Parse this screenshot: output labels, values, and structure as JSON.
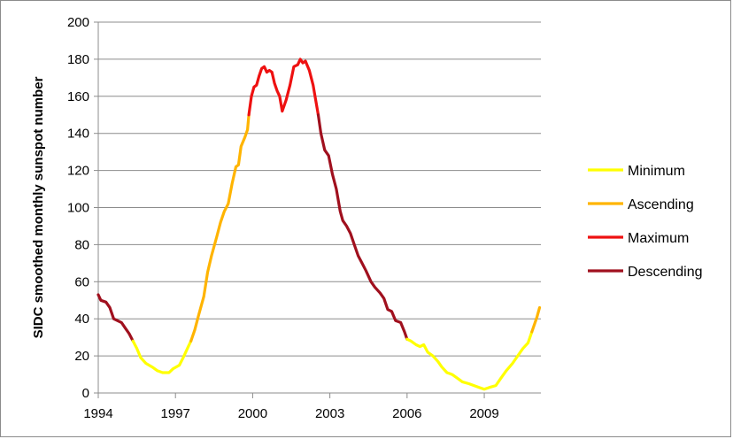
{
  "chart_data": {
    "type": "line",
    "title": "",
    "xlabel": "",
    "ylabel": "SIDC smoothed monthly sunspot number",
    "xlim": [
      1994,
      2011.2
    ],
    "ylim": [
      0,
      200
    ],
    "x_ticks": [
      1994,
      1997,
      2000,
      2003,
      2006,
      2009
    ],
    "y_ticks": [
      0,
      20,
      40,
      60,
      80,
      100,
      120,
      140,
      160,
      180,
      200
    ],
    "x_tick_labels": [
      "1994",
      "1997",
      "2000",
      "2003",
      "2006",
      "2009"
    ],
    "y_tick_labels": [
      "0",
      "20",
      "40",
      "60",
      "80",
      "100",
      "120",
      "140",
      "160",
      "180",
      "200"
    ],
    "grid": "horizontal",
    "legend_position": "right",
    "series": [
      {
        "name": "Descending",
        "color": "#a0101e",
        "segment": 1,
        "points": [
          [
            1994.0,
            53
          ],
          [
            1994.1,
            50
          ],
          [
            1994.3,
            49
          ],
          [
            1994.45,
            46
          ],
          [
            1994.6,
            40
          ],
          [
            1994.75,
            39
          ],
          [
            1994.9,
            38
          ],
          [
            1995.05,
            35
          ],
          [
            1995.2,
            32
          ],
          [
            1995.35,
            28
          ]
        ]
      },
      {
        "name": "Minimum",
        "color": "#ffff00",
        "segment": 1,
        "points": [
          [
            1995.35,
            28
          ],
          [
            1995.5,
            24
          ],
          [
            1995.65,
            19
          ],
          [
            1995.85,
            16
          ],
          [
            1996.1,
            14
          ],
          [
            1996.3,
            12
          ],
          [
            1996.5,
            11
          ],
          [
            1996.75,
            11
          ],
          [
            1996.9,
            13
          ],
          [
            1997.15,
            15
          ],
          [
            1997.3,
            19
          ],
          [
            1997.5,
            25
          ],
          [
            1997.6,
            28
          ]
        ]
      },
      {
        "name": "Ascending",
        "color": "#ffb400",
        "segment": 1,
        "points": [
          [
            1997.6,
            28
          ],
          [
            1997.75,
            34
          ],
          [
            1997.9,
            42
          ],
          [
            1998.1,
            52
          ],
          [
            1998.25,
            65
          ],
          [
            1998.4,
            74
          ],
          [
            1998.6,
            84
          ],
          [
            1998.75,
            92
          ],
          [
            1998.9,
            98
          ],
          [
            1999.05,
            102
          ],
          [
            1999.2,
            113
          ],
          [
            1999.35,
            122
          ],
          [
            1999.45,
            123
          ],
          [
            1999.55,
            133
          ],
          [
            1999.7,
            138
          ],
          [
            1999.8,
            142
          ],
          [
            1999.85,
            150
          ]
        ]
      },
      {
        "name": "Maximum",
        "color": "#ee1111",
        "segment": 1,
        "points": [
          [
            1999.85,
            150
          ],
          [
            1999.95,
            160
          ],
          [
            2000.05,
            165
          ],
          [
            2000.15,
            166
          ],
          [
            2000.25,
            171
          ],
          [
            2000.35,
            175
          ],
          [
            2000.45,
            176
          ],
          [
            2000.55,
            173
          ],
          [
            2000.65,
            174
          ],
          [
            2000.75,
            173
          ],
          [
            2000.85,
            167
          ],
          [
            2000.95,
            163
          ],
          [
            2001.05,
            160
          ],
          [
            2001.15,
            152
          ],
          [
            2001.3,
            158
          ],
          [
            2001.45,
            166
          ],
          [
            2001.6,
            176
          ],
          [
            2001.75,
            177
          ],
          [
            2001.85,
            180
          ],
          [
            2001.95,
            178
          ],
          [
            2002.05,
            179
          ],
          [
            2002.2,
            174
          ],
          [
            2002.35,
            166
          ],
          [
            2002.45,
            158
          ],
          [
            2002.55,
            150
          ]
        ]
      },
      {
        "name": "Descending",
        "color": "#a0101e",
        "segment": 2,
        "points": [
          [
            2002.55,
            150
          ],
          [
            2002.65,
            140
          ],
          [
            2002.8,
            131
          ],
          [
            2002.95,
            128
          ],
          [
            2003.1,
            118
          ],
          [
            2003.25,
            110
          ],
          [
            2003.4,
            98
          ],
          [
            2003.5,
            93
          ],
          [
            2003.65,
            90
          ],
          [
            2003.8,
            86
          ],
          [
            2003.95,
            80
          ],
          [
            2004.1,
            74
          ],
          [
            2004.25,
            70
          ],
          [
            2004.4,
            66
          ],
          [
            2004.6,
            60
          ],
          [
            2004.75,
            57
          ],
          [
            2004.95,
            54
          ],
          [
            2005.1,
            51
          ],
          [
            2005.25,
            45
          ],
          [
            2005.4,
            44
          ],
          [
            2005.55,
            39
          ],
          [
            2005.75,
            38
          ],
          [
            2005.9,
            33
          ],
          [
            2006.0,
            29
          ]
        ]
      },
      {
        "name": "Minimum",
        "color": "#ffff00",
        "segment": 2,
        "points": [
          [
            2006.0,
            29
          ],
          [
            2006.15,
            28
          ],
          [
            2006.35,
            26
          ],
          [
            2006.5,
            25
          ],
          [
            2006.65,
            26
          ],
          [
            2006.8,
            22
          ],
          [
            2007.0,
            20
          ],
          [
            2007.2,
            17
          ],
          [
            2007.35,
            14
          ],
          [
            2007.55,
            11
          ],
          [
            2007.75,
            10
          ],
          [
            2007.95,
            8
          ],
          [
            2008.15,
            6
          ],
          [
            2008.4,
            5
          ],
          [
            2008.6,
            4
          ],
          [
            2008.8,
            3
          ],
          [
            2009.0,
            2
          ],
          [
            2009.2,
            3
          ],
          [
            2009.45,
            4
          ],
          [
            2009.65,
            8
          ],
          [
            2009.85,
            12
          ],
          [
            2010.1,
            16
          ],
          [
            2010.3,
            20
          ],
          [
            2010.5,
            24
          ],
          [
            2010.7,
            27
          ],
          [
            2010.85,
            33
          ]
        ]
      },
      {
        "name": "Ascending",
        "color": "#ffb400",
        "segment": 2,
        "points": [
          [
            2010.85,
            33
          ],
          [
            2010.95,
            37
          ],
          [
            2011.05,
            41
          ],
          [
            2011.15,
            46
          ]
        ]
      }
    ],
    "legend": [
      {
        "label": "Minimum",
        "color": "#ffff00"
      },
      {
        "label": "Ascending",
        "color": "#ffb400"
      },
      {
        "label": "Maximum",
        "color": "#ee1111"
      },
      {
        "label": "Descending",
        "color": "#a0101e"
      }
    ]
  }
}
